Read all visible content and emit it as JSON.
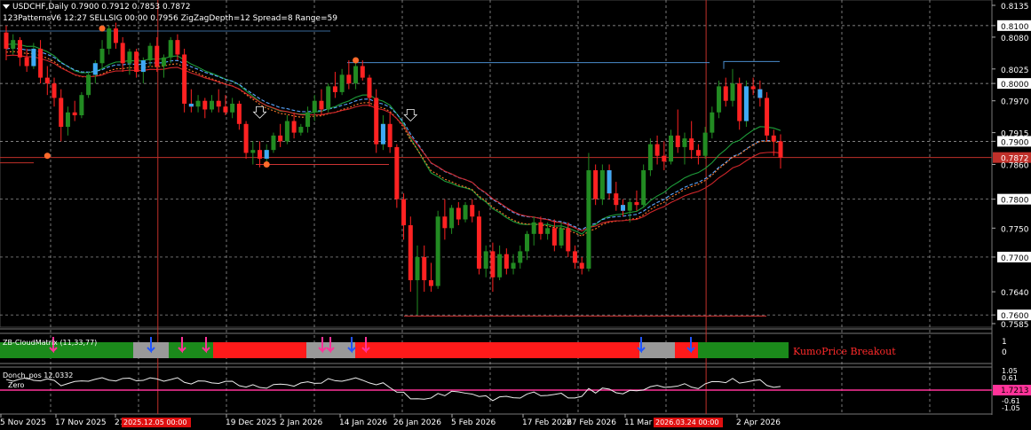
{
  "header": {
    "symbol_line": "USDCHF,Daily  0.7900 0.7912 0.7853 0.7872",
    "indicator_line": "123PatternsV6  12:27  SELLSIG  00:00  0.7956  ZigZagDepth=12  Spread=8  Range=59"
  },
  "subwindow1": {
    "title": "ZB-CloudMatrix (11,33,77)",
    "label": "KumoPrice Breakout",
    "scale": [
      "1",
      "0"
    ]
  },
  "subwindow2": {
    "title": "Donch_pos 12.0332",
    "zero_label": "Zero",
    "scale": [
      "1.05",
      "0.61",
      "1.7213",
      "-0.61",
      "-1.05"
    ]
  },
  "time_axis": {
    "labels": [
      "5 Nov 2025",
      "17 Nov 2025",
      "27 Nov 2025",
      "19 Dec 2025",
      "2 Jan 2026",
      "14 Jan 2026",
      "26 Jan 2026",
      "5 Feb 2026",
      "17 Feb 2026",
      "27 Feb 2026",
      "11 Mar 2026",
      "2 Apr 2026"
    ],
    "highlight_labels": [
      "2025.12.05 00:00",
      "2026.03.24 00:00"
    ]
  },
  "colors": {
    "background": "#000000",
    "bull": "#228B22",
    "bear": "#FF2222",
    "crosshair": "#C0302A",
    "grid": "#AAAAAA",
    "pink": "#FF3399"
  },
  "chart_data": {
    "type": "candlestick",
    "symbol": "USDCHF",
    "timeframe": "Daily",
    "ylim": [
      0.7585,
      0.8135
    ],
    "y_ticks": [
      0.8135,
      0.81,
      0.808,
      0.8025,
      0.8,
      0.797,
      0.7915,
      0.79,
      0.7872,
      0.786,
      0.78,
      0.775,
      0.77,
      0.764,
      0.76,
      0.7585
    ],
    "boxed_ticks": [
      0.81,
      0.8,
      0.79,
      0.7872,
      0.78,
      0.77,
      0.76
    ],
    "current_price": 0.7872,
    "levels": [
      {
        "name": "resistance",
        "value": 0.8036
      },
      {
        "name": "low",
        "value": 0.7598
      },
      {
        "name": "support",
        "value": 0.7872
      }
    ],
    "crosshairs": [
      "2025.12.05 00:00",
      "2026.03.24 00:00"
    ],
    "candles": [
      [
        0.8088,
        0.81,
        0.804,
        0.806
      ],
      [
        0.806,
        0.8085,
        0.805,
        0.8075
      ],
      [
        0.8075,
        0.808,
        0.803,
        0.8045
      ],
      [
        0.8045,
        0.806,
        0.802,
        0.803
      ],
      [
        0.803,
        0.807,
        0.8025,
        0.806
      ],
      [
        0.806,
        0.8075,
        0.8,
        0.801
      ],
      [
        0.801,
        0.803,
        0.798,
        0.8
      ],
      [
        0.8,
        0.801,
        0.796,
        0.7975
      ],
      [
        0.7975,
        0.799,
        0.79,
        0.7925
      ],
      [
        0.7925,
        0.796,
        0.791,
        0.795
      ],
      [
        0.795,
        0.797,
        0.7935,
        0.7945
      ],
      [
        0.7945,
        0.7985,
        0.794,
        0.798
      ],
      [
        0.798,
        0.802,
        0.7975,
        0.8015
      ],
      [
        0.8015,
        0.804,
        0.8,
        0.8035
      ],
      [
        0.8035,
        0.8075,
        0.8025,
        0.806
      ],
      [
        0.806,
        0.81,
        0.805,
        0.8095
      ],
      [
        0.8095,
        0.8105,
        0.806,
        0.807
      ],
      [
        0.807,
        0.808,
        0.802,
        0.8035
      ],
      [
        0.8035,
        0.806,
        0.8015,
        0.8055
      ],
      [
        0.8055,
        0.806,
        0.801,
        0.802
      ],
      [
        0.802,
        0.8045,
        0.8,
        0.804
      ],
      [
        0.804,
        0.807,
        0.803,
        0.8065
      ],
      [
        0.8065,
        0.808,
        0.802,
        0.803
      ],
      [
        0.803,
        0.805,
        0.801,
        0.8045
      ],
      [
        0.8045,
        0.808,
        0.8035,
        0.8075
      ],
      [
        0.8075,
        0.8085,
        0.804,
        0.805
      ],
      [
        0.805,
        0.806,
        0.795,
        0.7965
      ],
      [
        0.7965,
        0.799,
        0.795,
        0.796
      ],
      [
        0.796,
        0.798,
        0.795,
        0.797
      ],
      [
        0.797,
        0.7975,
        0.794,
        0.7955
      ],
      [
        0.7955,
        0.798,
        0.795,
        0.797
      ],
      [
        0.797,
        0.799,
        0.795,
        0.796
      ],
      [
        0.796,
        0.798,
        0.7945,
        0.795
      ],
      [
        0.795,
        0.7975,
        0.794,
        0.7965
      ],
      [
        0.7965,
        0.797,
        0.792,
        0.793
      ],
      [
        0.793,
        0.7935,
        0.787,
        0.788
      ],
      [
        0.788,
        0.79,
        0.786,
        0.7885
      ],
      [
        0.7885,
        0.79,
        0.7855,
        0.787
      ],
      [
        0.787,
        0.7895,
        0.7865,
        0.7885
      ],
      [
        0.7885,
        0.7915,
        0.788,
        0.791
      ],
      [
        0.791,
        0.793,
        0.789,
        0.79
      ],
      [
        0.79,
        0.7945,
        0.7895,
        0.7935
      ],
      [
        0.7935,
        0.795,
        0.7905,
        0.7915
      ],
      [
        0.7915,
        0.793,
        0.791,
        0.7925
      ],
      [
        0.7925,
        0.796,
        0.7915,
        0.795
      ],
      [
        0.795,
        0.798,
        0.7935,
        0.797
      ],
      [
        0.797,
        0.799,
        0.7945,
        0.7955
      ],
      [
        0.7955,
        0.8,
        0.795,
        0.7995
      ],
      [
        0.7995,
        0.802,
        0.7975,
        0.7985
      ],
      [
        0.7985,
        0.8025,
        0.798,
        0.8015
      ],
      [
        0.8015,
        0.804,
        0.799,
        0.8
      ],
      [
        0.8,
        0.8035,
        0.799,
        0.803
      ],
      [
        0.803,
        0.804,
        0.8005,
        0.801
      ],
      [
        0.801,
        0.8015,
        0.796,
        0.7975
      ],
      [
        0.7975,
        0.799,
        0.788,
        0.7895
      ],
      [
        0.7895,
        0.7945,
        0.7885,
        0.793
      ],
      [
        0.793,
        0.795,
        0.788,
        0.789
      ],
      [
        0.789,
        0.7895,
        0.7785,
        0.78
      ],
      [
        0.78,
        0.781,
        0.773,
        0.7755
      ],
      [
        0.7755,
        0.777,
        0.764,
        0.766
      ],
      [
        0.766,
        0.772,
        0.76,
        0.77
      ],
      [
        0.77,
        0.772,
        0.764,
        0.766
      ],
      [
        0.766,
        0.769,
        0.764,
        0.765
      ],
      [
        0.765,
        0.778,
        0.7645,
        0.777
      ],
      [
        0.777,
        0.78,
        0.773,
        0.775
      ],
      [
        0.775,
        0.779,
        0.774,
        0.7785
      ],
      [
        0.7785,
        0.7795,
        0.7755,
        0.7765
      ],
      [
        0.7765,
        0.7795,
        0.776,
        0.779
      ],
      [
        0.779,
        0.78,
        0.776,
        0.777
      ],
      [
        0.777,
        0.778,
        0.767,
        0.768
      ],
      [
        0.768,
        0.772,
        0.7665,
        0.771
      ],
      [
        0.771,
        0.7725,
        0.764,
        0.7665
      ],
      [
        0.7665,
        0.772,
        0.766,
        0.7705
      ],
      [
        0.7705,
        0.7715,
        0.767,
        0.768
      ],
      [
        0.768,
        0.7705,
        0.767,
        0.769
      ],
      [
        0.769,
        0.772,
        0.768,
        0.771
      ],
      [
        0.771,
        0.7745,
        0.7695,
        0.774
      ],
      [
        0.774,
        0.777,
        0.772,
        0.776
      ],
      [
        0.776,
        0.777,
        0.773,
        0.774
      ],
      [
        0.774,
        0.776,
        0.773,
        0.775
      ],
      [
        0.775,
        0.7765,
        0.771,
        0.772
      ],
      [
        0.772,
        0.776,
        0.7715,
        0.775
      ],
      [
        0.775,
        0.776,
        0.77,
        0.771
      ],
      [
        0.771,
        0.772,
        0.768,
        0.769
      ],
      [
        0.769,
        0.77,
        0.767,
        0.768
      ],
      [
        0.768,
        0.788,
        0.7675,
        0.785
      ],
      [
        0.785,
        0.786,
        0.779,
        0.78
      ],
      [
        0.78,
        0.786,
        0.779,
        0.785
      ],
      [
        0.785,
        0.786,
        0.78,
        0.781
      ],
      [
        0.781,
        0.783,
        0.778,
        0.779
      ],
      [
        0.779,
        0.78,
        0.777,
        0.778
      ],
      [
        0.778,
        0.78,
        0.776,
        0.7795
      ],
      [
        0.7795,
        0.7815,
        0.778,
        0.779
      ],
      [
        0.779,
        0.786,
        0.7785,
        0.785
      ],
      [
        0.785,
        0.7905,
        0.784,
        0.7895
      ],
      [
        0.7895,
        0.791,
        0.786,
        0.7875
      ],
      [
        0.7875,
        0.79,
        0.785,
        0.7865
      ],
      [
        0.7865,
        0.792,
        0.786,
        0.791
      ],
      [
        0.791,
        0.7955,
        0.788,
        0.789
      ],
      [
        0.789,
        0.7915,
        0.786,
        0.7905
      ],
      [
        0.7905,
        0.7935,
        0.787,
        0.7885
      ],
      [
        0.7885,
        0.7895,
        0.786,
        0.7875
      ],
      [
        0.7875,
        0.7925,
        0.787,
        0.7915
      ],
      [
        0.7915,
        0.796,
        0.7905,
        0.795
      ],
      [
        0.795,
        0.8005,
        0.794,
        0.7995
      ],
      [
        0.7995,
        0.801,
        0.796,
        0.797
      ],
      [
        0.797,
        0.8025,
        0.796,
        0.8
      ],
      [
        0.8,
        0.801,
        0.792,
        0.7935
      ],
      [
        0.7935,
        0.8005,
        0.7925,
        0.7995
      ],
      [
        0.7995,
        0.801,
        0.798,
        0.799
      ],
      [
        0.799,
        0.8005,
        0.796,
        0.7975
      ],
      [
        0.7975,
        0.7985,
        0.79,
        0.791
      ],
      [
        0.791,
        0.792,
        0.7875,
        0.79
      ],
      [
        0.79,
        0.7912,
        0.7853,
        0.7872
      ]
    ],
    "crosshair_candle_index": [
      22,
      102
    ]
  }
}
